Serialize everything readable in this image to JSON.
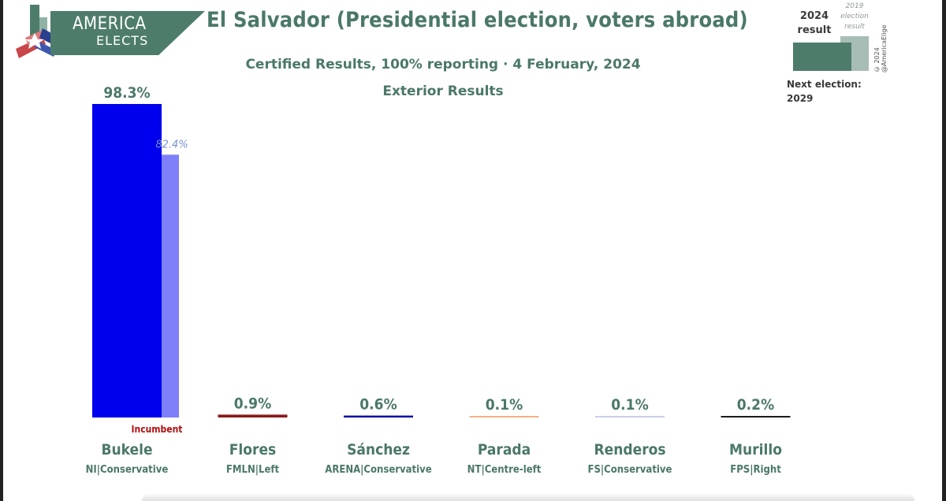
{
  "brand": {
    "line1": "AMERICA",
    "line2": "ELECTS"
  },
  "title": "El Salvador (Presidential election, voters abroad)",
  "subtitle": "Certified Results, 100% reporting · 4 February, 2024",
  "subtitle2": "Exterior Results",
  "legend": {
    "current_label": "2024 result",
    "previous_label": "2019 election result",
    "copyright": "© 2024 @AmericaElige",
    "next_election": "Next election:",
    "next_election_year": "2029"
  },
  "colors": {
    "accent": "#4d7d6a",
    "text": "#4b7868",
    "incumbent": "#b01010"
  },
  "chart_data": {
    "type": "bar",
    "ylim": [
      0,
      100
    ],
    "categories": [
      "Bukele",
      "Flores",
      "Sánchez",
      "Parada",
      "Renderos",
      "Murillo"
    ],
    "parties": [
      "NI|Conservative",
      "FMLN|Left",
      "ARENA|Conservative",
      "NT|Centre-left",
      "FS|Conservative",
      "FPS|Right"
    ],
    "series": [
      {
        "name": "2024 result",
        "values": [
          98.3,
          0.9,
          0.6,
          0.1,
          0.1,
          0.2
        ],
        "labels": [
          "98.3%",
          "0.9%",
          "0.6%",
          "0.1%",
          "0.1%",
          "0.2%"
        ]
      },
      {
        "name": "2019 election result",
        "values": [
          82.4,
          null,
          null,
          null,
          null,
          null
        ],
        "labels": [
          "82.4%",
          "",
          "",
          "",
          "",
          ""
        ]
      }
    ],
    "bar_colors": [
      "#0000ee",
      "#8b1a1a",
      "#0000aa",
      "#f4b183",
      "#c9cdee",
      "#1a1a1a"
    ],
    "prev_bar_colors": [
      "#7f7ffa",
      null,
      null,
      null,
      null,
      null
    ],
    "annotations": [
      {
        "category": "Bukele",
        "text": "Incumbent"
      }
    ]
  }
}
